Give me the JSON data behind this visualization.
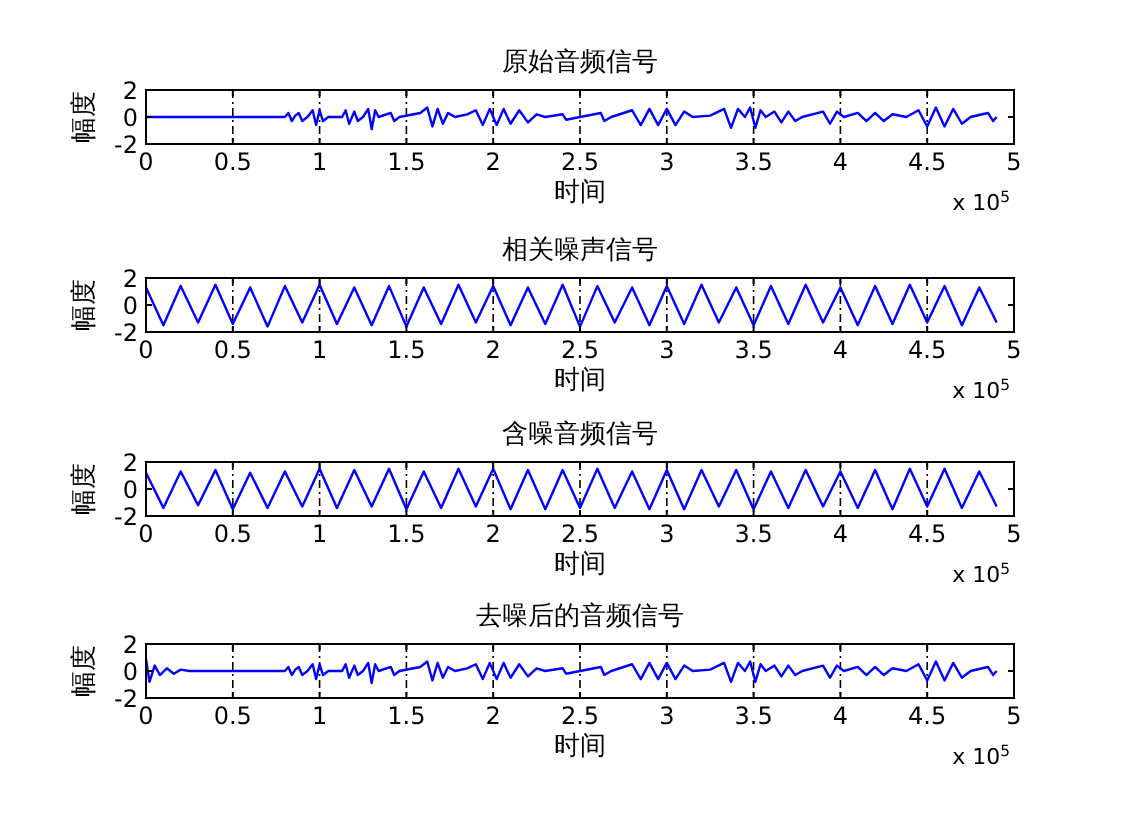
{
  "chart_data": [
    {
      "type": "line",
      "title": "原始音频信号",
      "xlabel": "时间",
      "ylabel": "幅度",
      "annotations": [
        "x 10$^{5}$"
      ],
      "grid": "x",
      "xlim": [
        0,
        5
      ],
      "ylim": [
        -2,
        2
      ],
      "yticks": [
        -2,
        0,
        2
      ],
      "xticks": [
        0,
        0.5,
        1,
        1.5,
        2,
        2.5,
        3,
        3.5,
        4,
        4.5,
        5
      ],
      "x": [
        0,
        0.8,
        0.82,
        0.84,
        0.86,
        0.88,
        0.9,
        0.93,
        0.96,
        0.98,
        1,
        1.02,
        1.05,
        1.13,
        1.15,
        1.17,
        1.2,
        1.22,
        1.25,
        1.28,
        1.3,
        1.32,
        1.34,
        1.41,
        1.43,
        1.46,
        1.58,
        1.62,
        1.65,
        1.68,
        1.71,
        1.74,
        1.78,
        1.85,
        1.9,
        1.94,
        1.98,
        2.02,
        2.06,
        2.1,
        2.15,
        2.2,
        2.25,
        2.3,
        2.4,
        2.42,
        2.5,
        2.62,
        2.64,
        2.68,
        2.8,
        2.85,
        2.9,
        2.95,
        3,
        3.05,
        3.1,
        3.15,
        3.25,
        3.33,
        3.37,
        3.41,
        3.45,
        3.48,
        3.51,
        3.54,
        3.57,
        3.62,
        3.66,
        3.7,
        3.74,
        3.78,
        3.9,
        3.94,
        3.98,
        4.02,
        4.1,
        4.15,
        4.2,
        4.25,
        4.3,
        4.38,
        4.45,
        4.5,
        4.55,
        4.6,
        4.65,
        4.7,
        4.75,
        4.85,
        4.88,
        4.9
      ],
      "series": [
        {
          "color": "#0000ff",
          "values": [
            0,
            0,
            0.3,
            -0.3,
            0.1,
            0.3,
            -0.3,
            0,
            0.5,
            -0.6,
            0.5,
            -0.3,
            0,
            0,
            0.5,
            -0.5,
            0.4,
            -0.3,
            0,
            0.6,
            -0.9,
            0.5,
            0,
            0.3,
            -0.3,
            0,
            0.3,
            0.7,
            -0.7,
            0.6,
            -0.5,
            0.3,
            0,
            0.2,
            0.5,
            -0.6,
            0.6,
            -0.6,
            0.6,
            -0.5,
            0.5,
            -0.4,
            0.2,
            0,
            0.2,
            -0.2,
            0,
            0.3,
            -0.3,
            0,
            0.5,
            -0.6,
            0.6,
            -0.6,
            0.6,
            -0.6,
            0.4,
            0,
            0.1,
            0.6,
            -0.8,
            0.6,
            0,
            0.7,
            -0.8,
            0.5,
            0,
            0.4,
            -0.4,
            0.4,
            -0.3,
            0,
            0.4,
            -0.5,
            0.4,
            0,
            0.3,
            -0.3,
            0.3,
            -0.3,
            0.2,
            0,
            0.5,
            -0.7,
            0.7,
            -0.7,
            0.6,
            -0.5,
            0,
            0.3,
            -0.3,
            0
          ]
        }
      ]
    },
    {
      "type": "line",
      "title": "相关噪声信号",
      "xlabel": "时间",
      "ylabel": "幅度",
      "annotations": [
        "x 10$^{5}$"
      ],
      "grid": "x",
      "xlim": [
        0,
        5
      ],
      "ylim": [
        -2,
        2
      ],
      "yticks": [
        -2,
        0,
        2
      ],
      "xticks": [
        0,
        0.5,
        1,
        1.5,
        2,
        2.5,
        3,
        3.5,
        4,
        4.5,
        5
      ],
      "x": [
        0,
        0.1,
        0.2,
        0.3,
        0.4,
        0.5,
        0.6,
        0.7,
        0.8,
        0.9,
        1,
        1.1,
        1.2,
        1.3,
        1.4,
        1.5,
        1.6,
        1.7,
        1.8,
        1.9,
        2,
        2.1,
        2.2,
        2.3,
        2.4,
        2.5,
        2.6,
        2.7,
        2.8,
        2.9,
        3,
        3.1,
        3.2,
        3.3,
        3.4,
        3.5,
        3.6,
        3.7,
        3.8,
        3.9,
        4,
        4.1,
        4.2,
        4.3,
        4.4,
        4.5,
        4.6,
        4.7,
        4.8,
        4.9
      ],
      "series": [
        {
          "color": "#0000ff",
          "values": [
            1.3,
            -1.5,
            1.4,
            -1.3,
            1.5,
            -1.4,
            1.3,
            -1.6,
            1.4,
            -1.3,
            1.5,
            -1.4,
            1.3,
            -1.5,
            1.4,
            -1.6,
            1.3,
            -1.4,
            1.5,
            -1.3,
            1.4,
            -1.5,
            1.3,
            -1.4,
            1.5,
            -1.6,
            1.4,
            -1.3,
            1.3,
            -1.5,
            1.4,
            -1.4,
            1.5,
            -1.3,
            1.3,
            -1.5,
            1.4,
            -1.4,
            1.5,
            -1.3,
            1.3,
            -1.5,
            1.4,
            -1.4,
            1.5,
            -1.3,
            1.4,
            -1.5,
            1.3,
            -1.3
          ]
        }
      ]
    },
    {
      "type": "line",
      "title": "含噪音频信号",
      "xlabel": "时间",
      "ylabel": "幅度",
      "annotations": [
        "x 10$^{5}$"
      ],
      "grid": "x",
      "xlim": [
        0,
        5
      ],
      "ylim": [
        -2,
        2
      ],
      "yticks": [
        -2,
        0,
        2
      ],
      "xticks": [
        0,
        0.5,
        1,
        1.5,
        2,
        2.5,
        3,
        3.5,
        4,
        4.5,
        5
      ],
      "x": [
        0,
        0.1,
        0.2,
        0.3,
        0.4,
        0.5,
        0.6,
        0.7,
        0.8,
        0.9,
        1,
        1.1,
        1.2,
        1.3,
        1.4,
        1.5,
        1.6,
        1.7,
        1.8,
        1.9,
        2,
        2.1,
        2.2,
        2.3,
        2.4,
        2.5,
        2.6,
        2.7,
        2.8,
        2.9,
        3,
        3.1,
        3.2,
        3.3,
        3.4,
        3.5,
        3.6,
        3.7,
        3.8,
        3.9,
        4,
        4.1,
        4.2,
        4.3,
        4.4,
        4.5,
        4.6,
        4.7,
        4.8,
        4.9
      ],
      "series": [
        {
          "color": "#0000ff",
          "values": [
            1.2,
            -1.4,
            1.3,
            -1.2,
            1.4,
            -1.5,
            1.2,
            -1.4,
            1.3,
            -1.3,
            1.5,
            -1.4,
            1.4,
            -1.3,
            1.5,
            -1.5,
            1.3,
            -1.4,
            1.5,
            -1.3,
            1.5,
            -1.5,
            1.4,
            -1.5,
            1.4,
            -1.4,
            1.5,
            -1.4,
            1.3,
            -1.5,
            1.4,
            -1.5,
            1.4,
            -1.3,
            1.4,
            -1.5,
            1.3,
            -1.4,
            1.4,
            -1.3,
            1.3,
            -1.4,
            1.4,
            -1.5,
            1.5,
            -1.3,
            1.5,
            -1.4,
            1.3,
            -1.3
          ]
        }
      ]
    },
    {
      "type": "line",
      "title": "去噪后的音频信号",
      "xlabel": "时间",
      "ylabel": "幅度",
      "annotations": [
        "x 10$^{5}$"
      ],
      "grid": "x",
      "xlim": [
        0,
        5
      ],
      "ylim": [
        -2,
        2
      ],
      "yticks": [
        -2,
        0,
        2
      ],
      "xticks": [
        0,
        0.5,
        1,
        1.5,
        2,
        2.5,
        3,
        3.5,
        4,
        4.5,
        5
      ],
      "x": [
        0,
        0.02,
        0.05,
        0.08,
        0.12,
        0.16,
        0.2,
        0.25,
        0.8,
        0.82,
        0.84,
        0.86,
        0.88,
        0.9,
        0.93,
        0.96,
        0.98,
        1,
        1.02,
        1.05,
        1.13,
        1.15,
        1.17,
        1.2,
        1.22,
        1.25,
        1.28,
        1.3,
        1.32,
        1.34,
        1.41,
        1.43,
        1.46,
        1.58,
        1.62,
        1.65,
        1.68,
        1.71,
        1.74,
        1.78,
        1.85,
        1.9,
        1.94,
        1.98,
        2.02,
        2.06,
        2.1,
        2.15,
        2.2,
        2.25,
        2.3,
        2.4,
        2.42,
        2.5,
        2.62,
        2.64,
        2.68,
        2.8,
        2.85,
        2.9,
        2.95,
        3,
        3.05,
        3.1,
        3.15,
        3.25,
        3.33,
        3.37,
        3.41,
        3.45,
        3.48,
        3.51,
        3.54,
        3.57,
        3.62,
        3.66,
        3.7,
        3.74,
        3.78,
        3.9,
        3.94,
        3.98,
        4.02,
        4.1,
        4.15,
        4.2,
        4.25,
        4.3,
        4.38,
        4.45,
        4.5,
        4.55,
        4.6,
        4.65,
        4.7,
        4.75,
        4.85,
        4.88,
        4.9
      ],
      "series": [
        {
          "color": "#0000ff",
          "values": [
            0.9,
            -0.8,
            0.4,
            -0.3,
            0.2,
            -0.2,
            0.1,
            0,
            0,
            0.3,
            -0.3,
            0.1,
            0.3,
            -0.3,
            0,
            0.5,
            -0.6,
            0.5,
            -0.3,
            0,
            0,
            0.5,
            -0.5,
            0.4,
            -0.3,
            0,
            0.6,
            -0.9,
            0.5,
            0,
            0.3,
            -0.3,
            0,
            0.3,
            0.7,
            -0.7,
            0.6,
            -0.5,
            0.3,
            0,
            0.2,
            0.5,
            -0.6,
            0.6,
            -0.6,
            0.6,
            -0.5,
            0.5,
            -0.4,
            0.2,
            0,
            0.2,
            -0.2,
            0,
            0.3,
            -0.3,
            0,
            0.5,
            -0.6,
            0.6,
            -0.6,
            0.6,
            -0.6,
            0.4,
            0,
            0.1,
            0.6,
            -0.8,
            0.6,
            0,
            0.7,
            -0.8,
            0.5,
            0,
            0.4,
            -0.4,
            0.4,
            -0.3,
            0,
            0.4,
            -0.5,
            0.4,
            0,
            0.3,
            -0.3,
            0.3,
            -0.3,
            0.2,
            0,
            0.5,
            -0.7,
            0.7,
            -0.7,
            0.6,
            -0.5,
            0,
            0.3,
            -0.3,
            0
          ]
        }
      ]
    }
  ]
}
